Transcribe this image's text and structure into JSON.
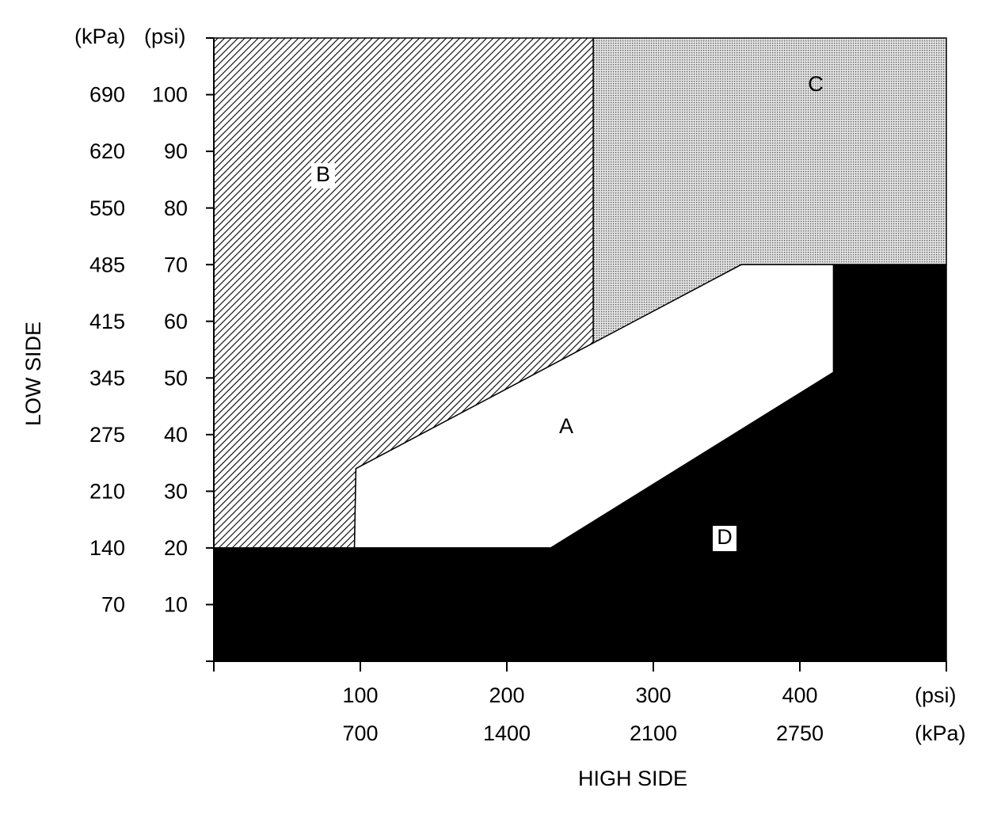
{
  "chart_data": {
    "type": "region",
    "x_label": "HIGH SIDE",
    "y_label": "LOW SIDE",
    "x_units": [
      "(psi)",
      "(kPa)"
    ],
    "y_units": [
      "(kPa)",
      "(psi)"
    ],
    "xlim": [
      0,
      500
    ],
    "ylim": [
      0,
      110
    ],
    "xticks": [
      100,
      200,
      300,
      400
    ],
    "xticks_kpa": [
      {
        "value": 100,
        "label": "700"
      },
      {
        "value": 200,
        "label": "1400"
      },
      {
        "value": 300,
        "label": "2100"
      },
      {
        "value": 400,
        "label": "2750"
      }
    ],
    "yticks": [
      10,
      20,
      30,
      40,
      50,
      60,
      70,
      80,
      90,
      100
    ],
    "yticks_kpa": [
      {
        "value": 10,
        "label": "70"
      },
      {
        "value": 20,
        "label": "140"
      },
      {
        "value": 30,
        "label": "210"
      },
      {
        "value": 40,
        "label": "275"
      },
      {
        "value": 50,
        "label": "345"
      },
      {
        "value": 60,
        "label": "415"
      },
      {
        "value": 70,
        "label": "485"
      },
      {
        "value": 80,
        "label": "550"
      },
      {
        "value": 90,
        "label": "620"
      },
      {
        "value": 100,
        "label": "690"
      }
    ],
    "regions": [
      {
        "name": "B",
        "fill": "hatch",
        "x": [
          0,
          96,
          97,
          259,
          259,
          0
        ],
        "y": [
          20,
          20,
          34,
          56,
          110,
          110
        ]
      },
      {
        "name": "C",
        "fill": "dots",
        "x": [
          259,
          360,
          500,
          500,
          259
        ],
        "y": [
          56,
          70,
          70,
          110,
          110
        ]
      },
      {
        "name": "A",
        "fill": "white",
        "x": [
          96,
          97,
          360,
          423,
          423,
          230
        ],
        "y": [
          20,
          34,
          70,
          70,
          51,
          20
        ]
      },
      {
        "name": "D",
        "fill": "black",
        "x": [
          0,
          500,
          500,
          423,
          423,
          230,
          0
        ],
        "y": [
          0,
          0,
          70,
          70,
          51,
          20,
          20
        ]
      }
    ]
  }
}
